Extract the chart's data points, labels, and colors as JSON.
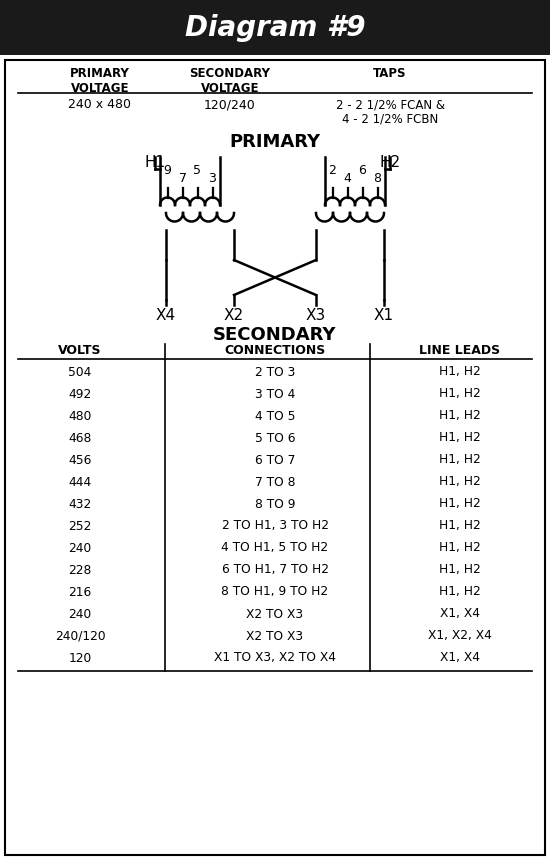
{
  "title": "Diagram #9",
  "title_bg": "#1a1a1a",
  "title_color": "#ffffff",
  "title_fontsize": 20,
  "header_row": [
    "PRIMARY\nVOLTAGE",
    "SECONDARY\nVOLTAGE",
    "TAPS"
  ],
  "header_values": [
    "240 x 480",
    "120/240",
    "2 - 2 1/2% FCAN &\n4 - 2 1/2% FCBN"
  ],
  "primary_label": "PRIMARY",
  "secondary_label": "SECONDARY",
  "h1_label": "H1",
  "h2_label": "H2",
  "x4_label": "X4",
  "x2_label": "X2",
  "x3_label": "X3",
  "x1_label": "X1",
  "tap_labels_left": [
    "9",
    "7",
    "5",
    "3"
  ],
  "tap_labels_right": [
    "2",
    "4",
    "6",
    "8"
  ],
  "table_headers": [
    "VOLTS",
    "CONNECTIONS",
    "LINE LEADS"
  ],
  "table_data": [
    [
      "504",
      "2 TO 3",
      "H1, H2"
    ],
    [
      "492",
      "3 TO 4",
      "H1, H2"
    ],
    [
      "480",
      "4 TO 5",
      "H1, H2"
    ],
    [
      "468",
      "5 TO 6",
      "H1, H2"
    ],
    [
      "456",
      "6 TO 7",
      "H1, H2"
    ],
    [
      "444",
      "7 TO 8",
      "H1, H2"
    ],
    [
      "432",
      "8 TO 9",
      "H1, H2"
    ],
    [
      "252",
      "2 TO H1, 3 TO H2",
      "H1, H2"
    ],
    [
      "240",
      "4 TO H1, 5 TO H2",
      "H1, H2"
    ],
    [
      "228",
      "6 TO H1, 7 TO H2",
      "H1, H2"
    ],
    [
      "216",
      "8 TO H1, 9 TO H2",
      "H1, H2"
    ],
    [
      "240",
      "X2 TO X3",
      "X1, X4"
    ],
    [
      "240/120",
      "X2 TO X3",
      "X1, X2, X4"
    ],
    [
      "120",
      "X1 TO X3, X2 TO X4",
      "X1, X4"
    ]
  ],
  "border_color": "#000000",
  "bg_color": "#ffffff",
  "lw": 1.8
}
